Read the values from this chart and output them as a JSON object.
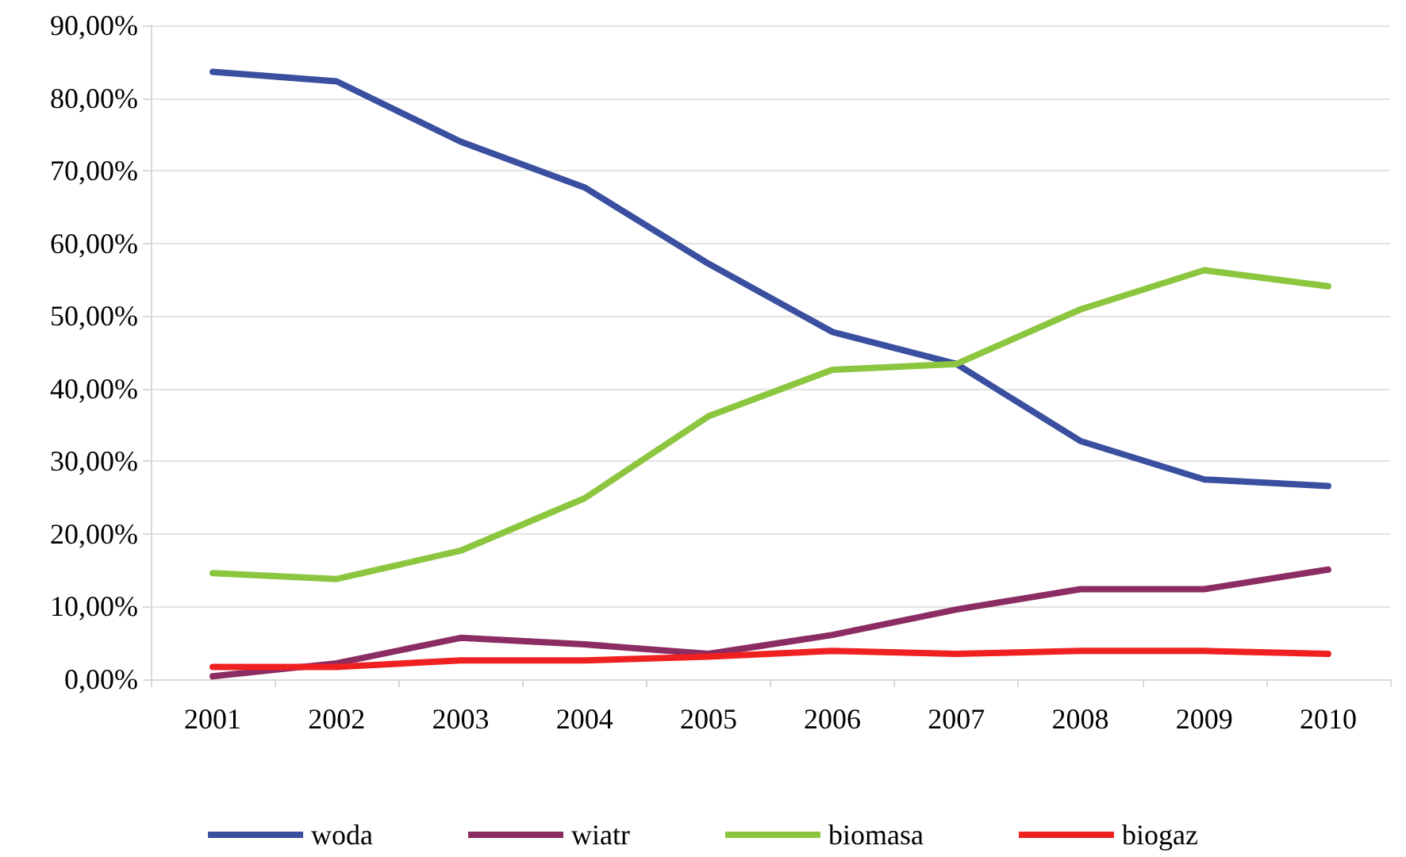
{
  "chart_data": {
    "type": "line",
    "categories": [
      "2001",
      "2002",
      "2003",
      "2004",
      "2005",
      "2006",
      "2007",
      "2008",
      "2009",
      "2010"
    ],
    "series": [
      {
        "name": "woda",
        "color": "#3a4fa0",
        "values": [
          83.6,
          82.3,
          74.0,
          67.7,
          57.2,
          47.8,
          43.4,
          32.8,
          27.5,
          26.6
        ]
      },
      {
        "name": "wiatr",
        "color": "#8b2d62",
        "values": [
          0.4,
          2.2,
          5.7,
          4.8,
          3.5,
          6.1,
          9.6,
          12.4,
          12.4,
          15.1
        ]
      },
      {
        "name": "biomasa",
        "color": "#8cc63f",
        "values": [
          14.6,
          13.8,
          17.7,
          24.9,
          36.2,
          42.6,
          43.4,
          50.9,
          56.3,
          54.1
        ]
      },
      {
        "name": "biogaz",
        "color": "#f02020",
        "values": [
          1.7,
          1.7,
          2.6,
          2.6,
          3.1,
          3.9,
          3.5,
          3.9,
          3.9,
          3.5
        ]
      }
    ],
    "ylim": [
      0,
      90
    ],
    "yticks": [
      {
        "value": 0,
        "label": "0,00%"
      },
      {
        "value": 10,
        "label": "10,00%"
      },
      {
        "value": 20,
        "label": "20,00%"
      },
      {
        "value": 30,
        "label": "30,00%"
      },
      {
        "value": 40,
        "label": "40,00%"
      },
      {
        "value": 50,
        "label": "50,00%"
      },
      {
        "value": 60,
        "label": "60,00%"
      },
      {
        "value": 70,
        "label": "70,00%"
      },
      {
        "value": 80,
        "label": "80,00%"
      },
      {
        "value": 90,
        "label": "90,00%"
      }
    ],
    "grid": "y",
    "legend": "bottom",
    "marker": "none",
    "line_style": "solid"
  }
}
